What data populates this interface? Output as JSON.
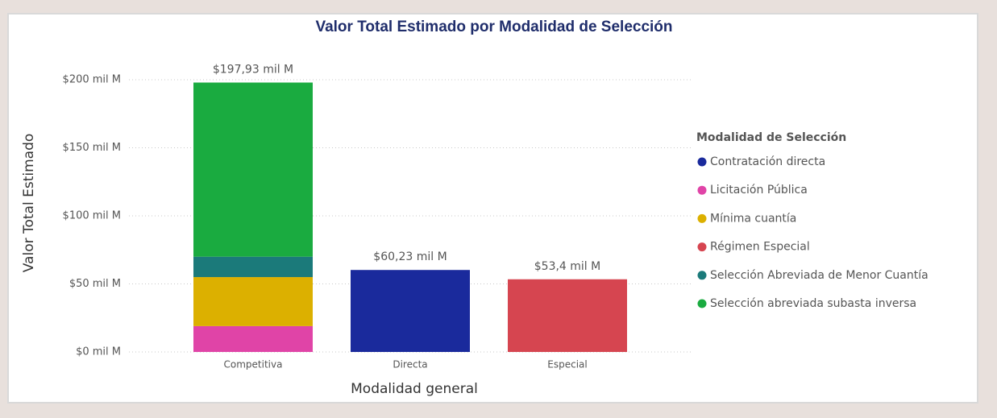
{
  "chart_data": {
    "type": "stacked_bar",
    "title": "Valor Total Estimado por Modalidad de Selección",
    "x_label": "Modalidad general",
    "y_label": "Valor Total Estimado",
    "categories": [
      "Competitiva",
      "Directa",
      "Especial"
    ],
    "series": [
      {
        "name": "Contratación directa",
        "color": "#1a2a9c",
        "values": [
          null,
          60.23,
          null
        ]
      },
      {
        "name": "Licitación Pública",
        "color": "#e044a7",
        "values": [
          19,
          null,
          null
        ]
      },
      {
        "name": "Mínima cuantía",
        "color": "#dcb000",
        "values": [
          36,
          null,
          null
        ]
      },
      {
        "name": "Régimen Especial",
        "color": "#d64550",
        "values": [
          null,
          null,
          53.4
        ]
      },
      {
        "name": "Selección Abreviada de Menor Cuantía",
        "color": "#1b7a7a",
        "values": [
          15,
          null,
          null
        ]
      },
      {
        "name": "Selección abreviada subasta inversa",
        "color": "#1aab40",
        "values": [
          127.93,
          null,
          null
        ]
      }
    ],
    "totals": [
      197.93,
      60.23,
      53.4
    ],
    "total_labels": [
      "$197,93 mil M",
      "$60,23 mil M",
      "$53,4 mil M"
    ],
    "ylim": [
      0,
      200
    ],
    "yticks": [
      {
        "value": 0,
        "label": "$0 mil M"
      },
      {
        "value": 50,
        "label": "$50 mil M"
      },
      {
        "value": 100,
        "label": "$100 mil M"
      },
      {
        "value": 150,
        "label": "$150 mil M"
      },
      {
        "value": 200,
        "label": "$200 mil M"
      }
    ],
    "grid": true,
    "legend_title": "Modalidad de Selección",
    "legend_position": "right"
  }
}
